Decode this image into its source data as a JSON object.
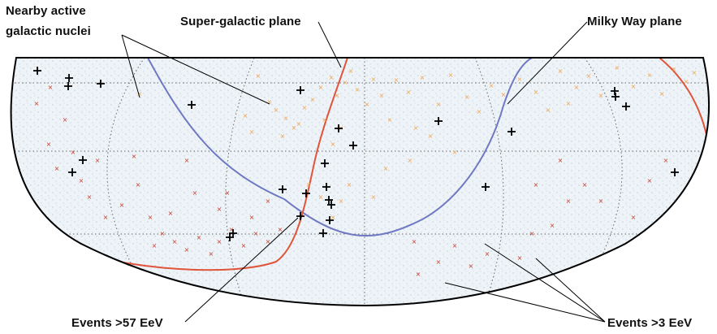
{
  "annotations": {
    "nearby_agn_line1": "Nearby active",
    "nearby_agn_line2": "galactic nuclei",
    "super_galactic_plane": "Super-galactic plane",
    "milky_way_plane": "Milky Way plane",
    "events_high": "Events >57 EeV",
    "events_low": "Events >3 EeV"
  },
  "colors": {
    "background_field": "#eef3f7",
    "speckle": "#b9cbd9",
    "grid": "#666666",
    "supergalactic_curve": "#e0543a",
    "milky_way_curve": "#6f78c2",
    "agn_light": "#f0a24a",
    "agn_dark": "#c93a2a",
    "events_high_marker": "#000000",
    "outline": "#000000"
  },
  "icons": {
    "events_high": "plus-cross-icon",
    "agn": "small-x-icon"
  }
}
